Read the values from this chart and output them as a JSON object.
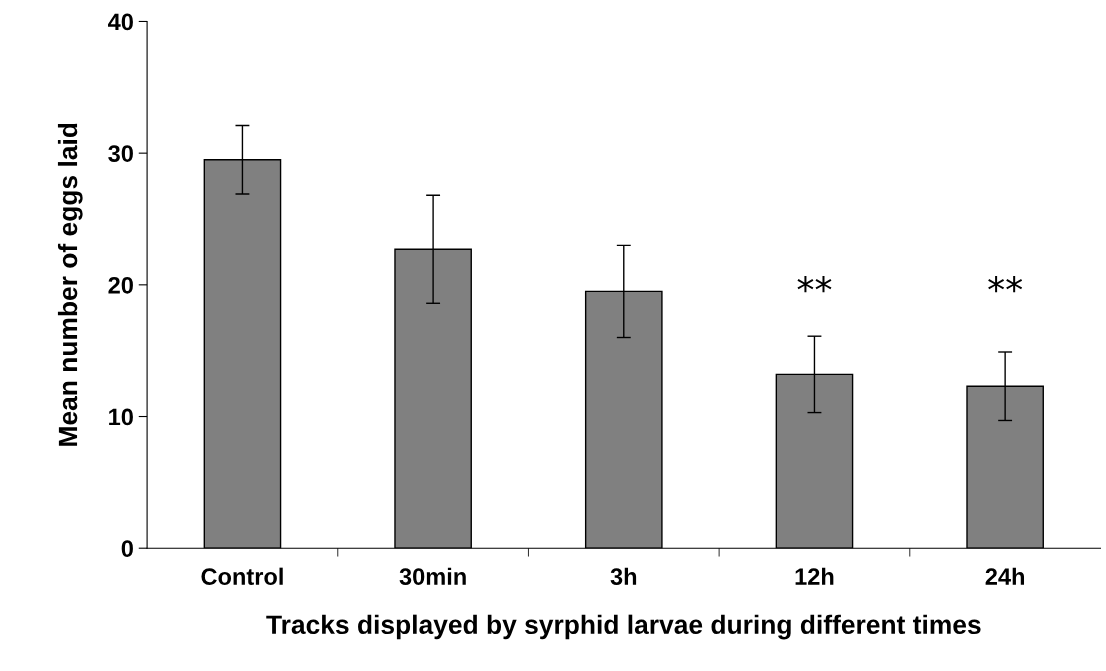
{
  "chart_data": {
    "type": "bar",
    "xlabel": "Tracks displayed by syrphid larvae during different times",
    "ylabel": "Mean number of eggs laid",
    "categories": [
      "Control",
      "30min",
      "3h",
      "12h",
      "24h"
    ],
    "values": [
      29.5,
      22.7,
      19.5,
      13.2,
      12.3
    ],
    "errors": [
      2.6,
      4.1,
      3.5,
      2.9,
      2.6
    ],
    "color": "#808080",
    "ylim": [
      0,
      40
    ],
    "yticks": [
      0,
      10,
      20,
      30,
      40
    ],
    "grid": false,
    "legend": false,
    "annotations": [
      "**",
      "**"
    ]
  }
}
